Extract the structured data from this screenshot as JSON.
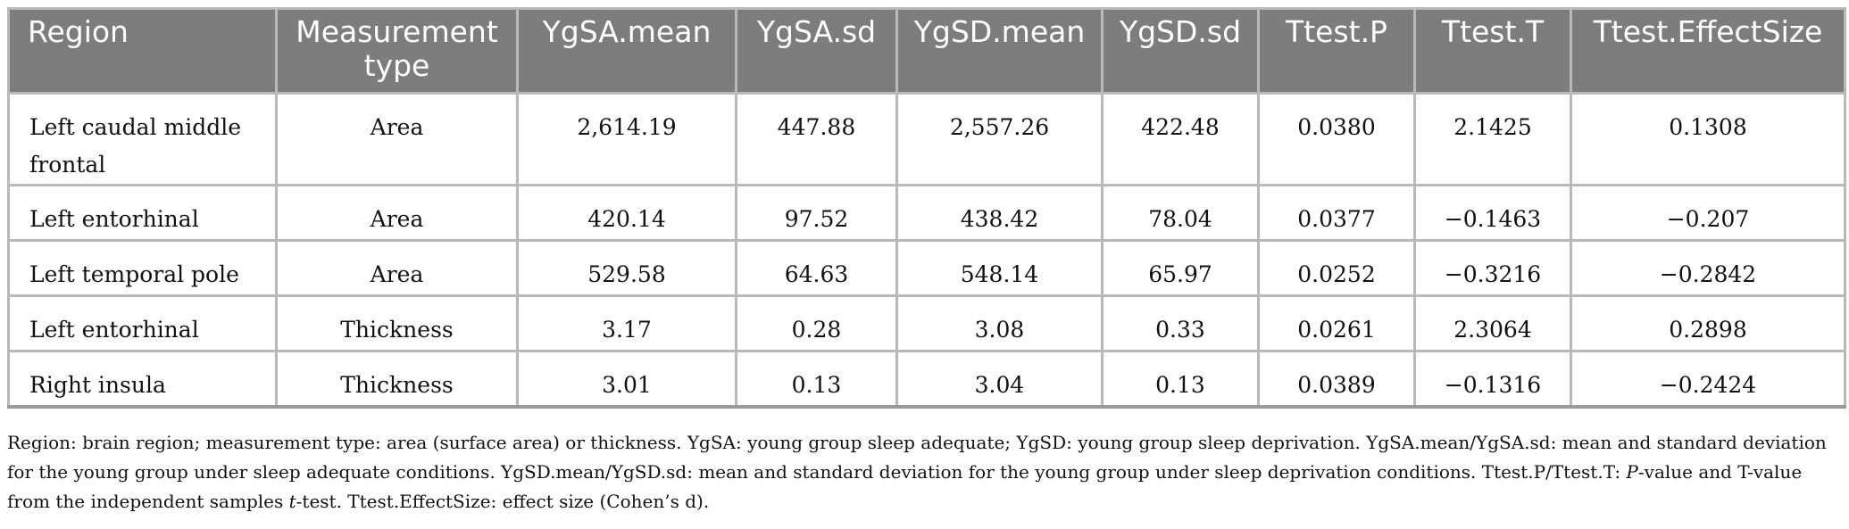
{
  "table": {
    "headers": [
      "Region",
      "Measurement type",
      "YgSA.mean",
      "YgSA.sd",
      "YgSD.mean",
      "YgSD.sd",
      "Ttest.P",
      "Ttest.T",
      "Ttest.EffectSize"
    ],
    "rows": [
      [
        "Left caudal middle frontal",
        "Area",
        "2,614.19",
        "447.88",
        "2,557.26",
        "422.48",
        "0.0380",
        "2.1425",
        "0.1308"
      ],
      [
        "Left entorhinal",
        "Area",
        "420.14",
        "97.52",
        "438.42",
        "78.04",
        "0.0377",
        "−0.1463",
        "−0.207"
      ],
      [
        "Left temporal pole",
        "Area",
        "529.58",
        "64.63",
        "548.14",
        "65.97",
        "0.0252",
        "−0.3216",
        "−0.2842"
      ],
      [
        "Left entorhinal",
        "Thickness",
        "3.17",
        "0.28",
        "3.08",
        "0.33",
        "0.0261",
        "2.3064",
        "0.2898"
      ],
      [
        "Right insula",
        "Thickness",
        "3.01",
        "0.13",
        "3.04",
        "0.13",
        "0.0389",
        "−0.1316",
        "−0.2424"
      ]
    ]
  },
  "footnote": {
    "part1": "Region: brain region; measurement type: area (surface area) or thickness. YgSA: young group sleep adequate; YgSD: young group sleep deprivation. YgSA.mean/YgSA.sd: mean and standard deviation for the young group under sleep adequate conditions. YgSD.mean/YgSD.sd: mean and standard deviation for the young group under sleep deprivation conditions. Ttest.P/Ttest.T: ",
    "p_italic": "P",
    "part2": "-value and T-value from the independent samples ",
    "t_italic": "t",
    "part3": "-test. Ttest.EffectSize: effect size (Cohen’s d)."
  }
}
